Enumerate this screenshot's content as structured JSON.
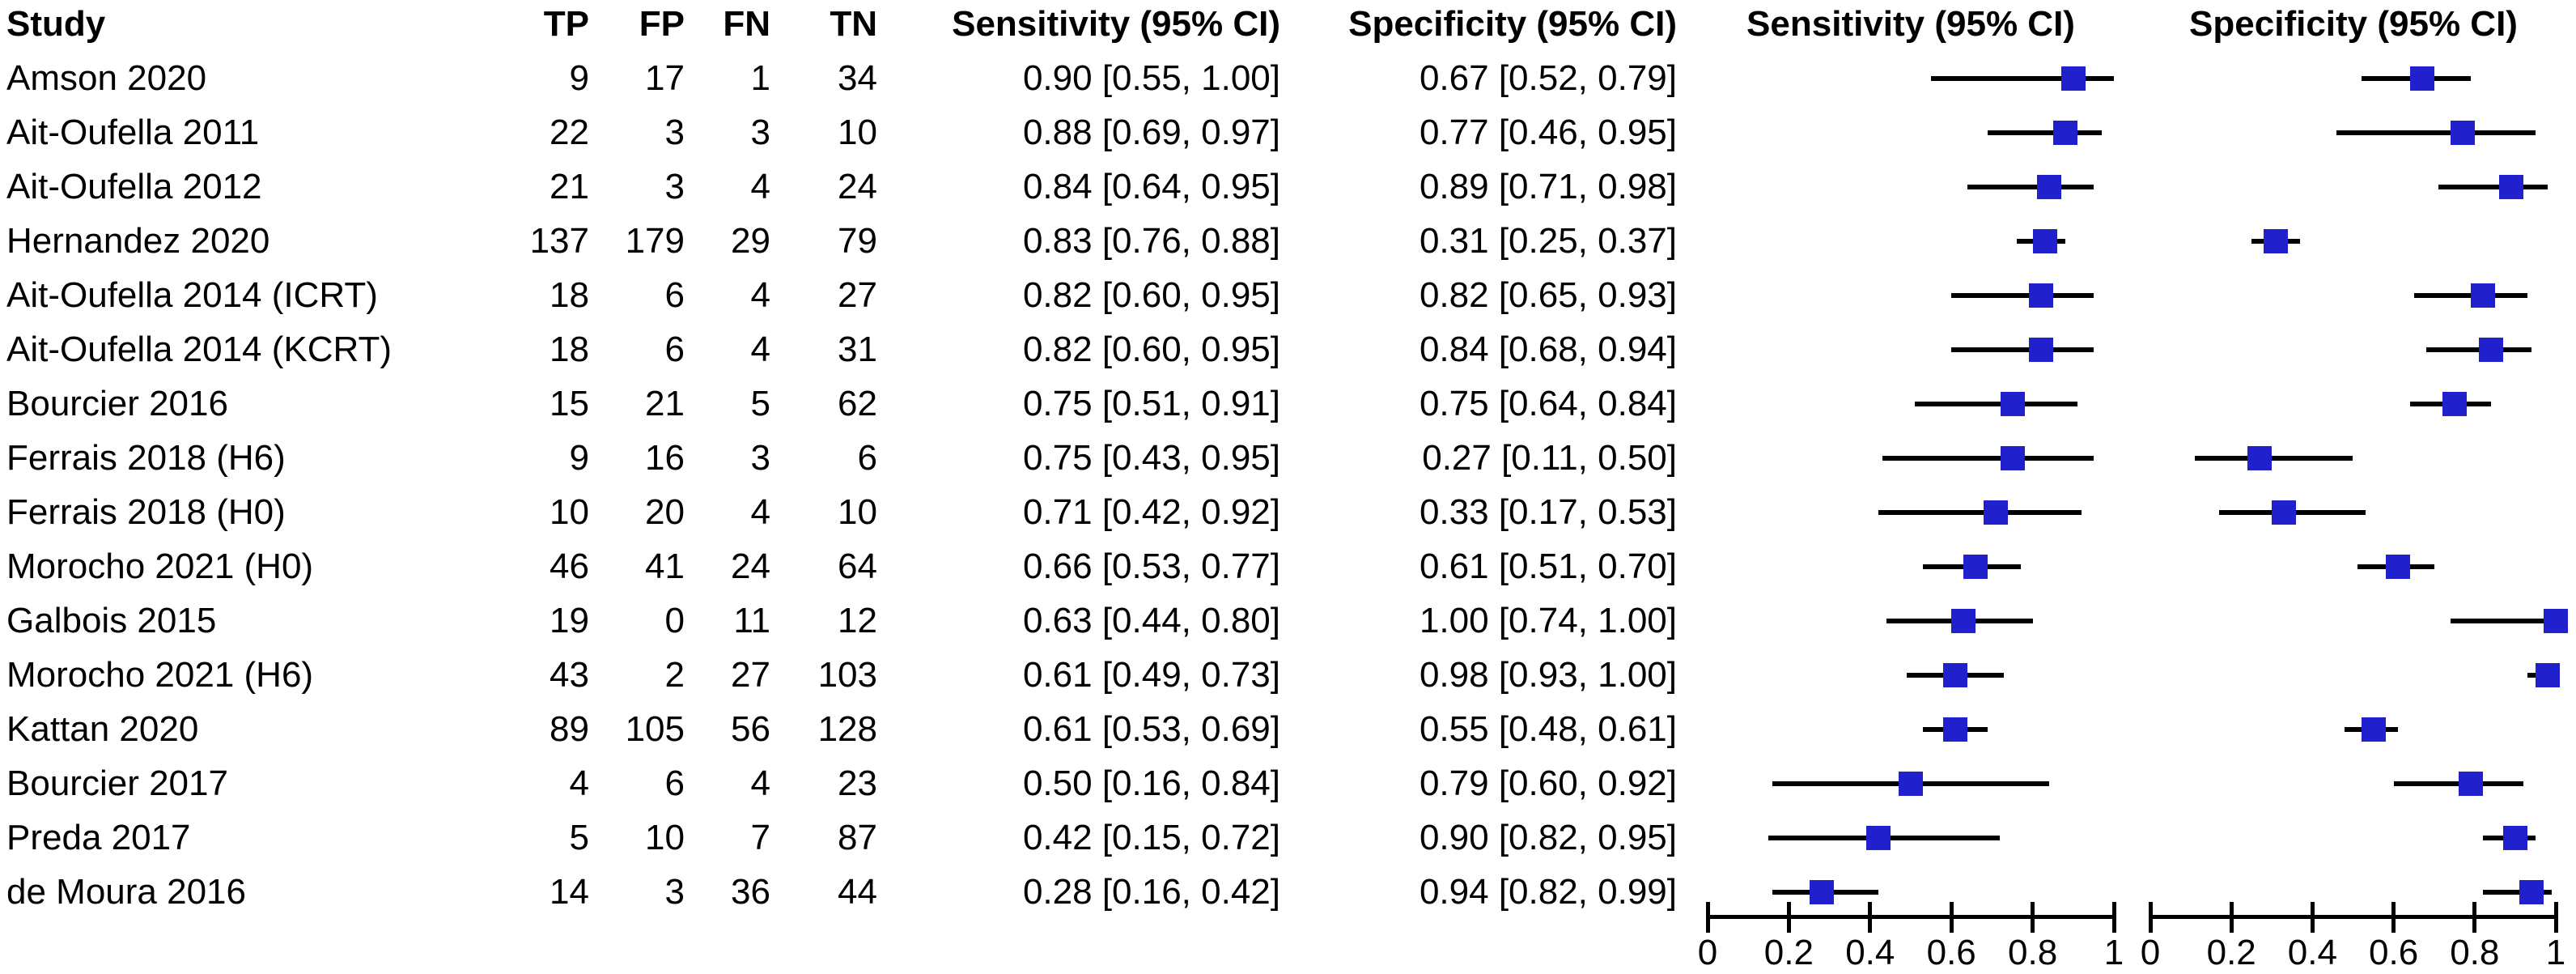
{
  "figure": {
    "kind": "diagnostic-accuracy-forest-plot",
    "background": "#FFFFFF"
  },
  "colors": {
    "marker_square": "#2020CC",
    "ci_line": "#000000",
    "axis": "#000000",
    "text": "#000000"
  },
  "columns": {
    "study": "Study",
    "tp": "TP",
    "fp": "FP",
    "fn": "FN",
    "tn": "TN",
    "sens_ci": "Sensitivity (95% CI)",
    "spec_ci": "Specificity (95% CI)",
    "sens_plot": "Sensitivity (95% CI)",
    "spec_plot": "Specificity (95% CI)"
  },
  "axis": {
    "tick_labels": [
      "0",
      "0.2",
      "0.4",
      "0.6",
      "0.8",
      "1"
    ],
    "tick_values": [
      0,
      0.2,
      0.4,
      0.6,
      0.8,
      1
    ],
    "min": 0,
    "max": 1
  },
  "rows": [
    {
      "study": "Amson 2020",
      "tp": "9",
      "fp": "17",
      "fn": "1",
      "tn": "34",
      "sens_text": "0.90 [0.55, 1.00]",
      "spec_text": "0.67 [0.52, 0.79]",
      "sens": 0.9,
      "sens_lo": 0.55,
      "sens_hi": 1.0,
      "spec": 0.67,
      "spec_lo": 0.52,
      "spec_hi": 0.79
    },
    {
      "study": "Ait-Oufella 2011",
      "tp": "22",
      "fp": "3",
      "fn": "3",
      "tn": "10",
      "sens_text": "0.88 [0.69, 0.97]",
      "spec_text": "0.77 [0.46, 0.95]",
      "sens": 0.88,
      "sens_lo": 0.69,
      "sens_hi": 0.97,
      "spec": 0.77,
      "spec_lo": 0.46,
      "spec_hi": 0.95
    },
    {
      "study": "Ait-Oufella 2012",
      "tp": "21",
      "fp": "3",
      "fn": "4",
      "tn": "24",
      "sens_text": "0.84 [0.64, 0.95]",
      "spec_text": "0.89 [0.71, 0.98]",
      "sens": 0.84,
      "sens_lo": 0.64,
      "sens_hi": 0.95,
      "spec": 0.89,
      "spec_lo": 0.71,
      "spec_hi": 0.98
    },
    {
      "study": "Hernandez 2020",
      "tp": "137",
      "fp": "179",
      "fn": "29",
      "tn": "79",
      "sens_text": "0.83 [0.76, 0.88]",
      "spec_text": "0.31 [0.25, 0.37]",
      "sens": 0.83,
      "sens_lo": 0.76,
      "sens_hi": 0.88,
      "spec": 0.31,
      "spec_lo": 0.25,
      "spec_hi": 0.37
    },
    {
      "study": "Ait-Oufella 2014 (ICRT)",
      "tp": "18",
      "fp": "6",
      "fn": "4",
      "tn": "27",
      "sens_text": "0.82 [0.60, 0.95]",
      "spec_text": "0.82 [0.65, 0.93]",
      "sens": 0.82,
      "sens_lo": 0.6,
      "sens_hi": 0.95,
      "spec": 0.82,
      "spec_lo": 0.65,
      "spec_hi": 0.93
    },
    {
      "study": "Ait-Oufella 2014 (KCRT)",
      "tp": "18",
      "fp": "6",
      "fn": "4",
      "tn": "31",
      "sens_text": "0.82 [0.60, 0.95]",
      "spec_text": "0.84 [0.68, 0.94]",
      "sens": 0.82,
      "sens_lo": 0.6,
      "sens_hi": 0.95,
      "spec": 0.84,
      "spec_lo": 0.68,
      "spec_hi": 0.94
    },
    {
      "study": "Bourcier 2016",
      "tp": "15",
      "fp": "21",
      "fn": "5",
      "tn": "62",
      "sens_text": "0.75 [0.51, 0.91]",
      "spec_text": "0.75 [0.64, 0.84]",
      "sens": 0.75,
      "sens_lo": 0.51,
      "sens_hi": 0.91,
      "spec": 0.75,
      "spec_lo": 0.64,
      "spec_hi": 0.84
    },
    {
      "study": "Ferrais 2018 (H6)",
      "tp": "9",
      "fp": "16",
      "fn": "3",
      "tn": "6",
      "sens_text": "0.75 [0.43, 0.95]",
      "spec_text": "0.27 [0.11, 0.50]",
      "sens": 0.75,
      "sens_lo": 0.43,
      "sens_hi": 0.95,
      "spec": 0.27,
      "spec_lo": 0.11,
      "spec_hi": 0.5
    },
    {
      "study": "Ferrais 2018 (H0)",
      "tp": "10",
      "fp": "20",
      "fn": "4",
      "tn": "10",
      "sens_text": "0.71 [0.42, 0.92]",
      "spec_text": "0.33 [0.17, 0.53]",
      "sens": 0.71,
      "sens_lo": 0.42,
      "sens_hi": 0.92,
      "spec": 0.33,
      "spec_lo": 0.17,
      "spec_hi": 0.53
    },
    {
      "study": "Morocho 2021 (H0)",
      "tp": "46",
      "fp": "41",
      "fn": "24",
      "tn": "64",
      "sens_text": "0.66 [0.53, 0.77]",
      "spec_text": "0.61 [0.51, 0.70]",
      "sens": 0.66,
      "sens_lo": 0.53,
      "sens_hi": 0.77,
      "spec": 0.61,
      "spec_lo": 0.51,
      "spec_hi": 0.7
    },
    {
      "study": "Galbois 2015",
      "tp": "19",
      "fp": "0",
      "fn": "11",
      "tn": "12",
      "sens_text": "0.63 [0.44, 0.80]",
      "spec_text": "1.00 [0.74, 1.00]",
      "sens": 0.63,
      "sens_lo": 0.44,
      "sens_hi": 0.8,
      "spec": 1.0,
      "spec_lo": 0.74,
      "spec_hi": 1.0
    },
    {
      "study": "Morocho 2021 (H6)",
      "tp": "43",
      "fp": "2",
      "fn": "27",
      "tn": "103",
      "sens_text": "0.61 [0.49, 0.73]",
      "spec_text": "0.98 [0.93, 1.00]",
      "sens": 0.61,
      "sens_lo": 0.49,
      "sens_hi": 0.73,
      "spec": 0.98,
      "spec_lo": 0.93,
      "spec_hi": 1.0
    },
    {
      "study": "Kattan 2020",
      "tp": "89",
      "fp": "105",
      "fn": "56",
      "tn": "128",
      "sens_text": "0.61 [0.53, 0.69]",
      "spec_text": "0.55 [0.48, 0.61]",
      "sens": 0.61,
      "sens_lo": 0.53,
      "sens_hi": 0.69,
      "spec": 0.55,
      "spec_lo": 0.48,
      "spec_hi": 0.61
    },
    {
      "study": "Bourcier 2017",
      "tp": "4",
      "fp": "6",
      "fn": "4",
      "tn": "23",
      "sens_text": "0.50 [0.16, 0.84]",
      "spec_text": "0.79 [0.60, 0.92]",
      "sens": 0.5,
      "sens_lo": 0.16,
      "sens_hi": 0.84,
      "spec": 0.79,
      "spec_lo": 0.6,
      "spec_hi": 0.92
    },
    {
      "study": "Preda 2017",
      "tp": "5",
      "fp": "10",
      "fn": "7",
      "tn": "87",
      "sens_text": "0.42 [0.15, 0.72]",
      "spec_text": "0.90 [0.82, 0.95]",
      "sens": 0.42,
      "sens_lo": 0.15,
      "sens_hi": 0.72,
      "spec": 0.9,
      "spec_lo": 0.82,
      "spec_hi": 0.95
    },
    {
      "study": "de Moura 2016",
      "tp": "14",
      "fp": "3",
      "fn": "36",
      "tn": "44",
      "sens_text": "0.28 [0.16, 0.42]",
      "spec_text": "0.94 [0.82, 0.99]",
      "sens": 0.28,
      "sens_lo": 0.16,
      "sens_hi": 0.42,
      "spec": 0.94,
      "spec_lo": 0.82,
      "spec_hi": 0.99
    }
  ],
  "chart_data": {
    "type": "scatter",
    "subtype": "forest-plot",
    "title": "",
    "categories": [
      "Amson 2020",
      "Ait-Oufella 2011",
      "Ait-Oufella 2012",
      "Hernandez 2020",
      "Ait-Oufella 2014 (ICRT)",
      "Ait-Oufella 2014 (KCRT)",
      "Bourcier 2016",
      "Ferrais 2018 (H6)",
      "Ferrais 2018 (H0)",
      "Morocho 2021 (H0)",
      "Galbois 2015",
      "Morocho 2021 (H6)",
      "Kattan 2020",
      "Bourcier 2017",
      "Preda 2017",
      "de Moura 2016"
    ],
    "counts": {
      "TP": [
        9,
        22,
        21,
        137,
        18,
        18,
        15,
        9,
        10,
        46,
        19,
        43,
        89,
        4,
        5,
        14
      ],
      "FP": [
        17,
        3,
        3,
        179,
        6,
        6,
        21,
        16,
        20,
        41,
        0,
        2,
        105,
        6,
        10,
        3
      ],
      "FN": [
        1,
        3,
        4,
        29,
        4,
        4,
        5,
        3,
        4,
        24,
        11,
        27,
        56,
        4,
        7,
        36
      ],
      "TN": [
        34,
        10,
        24,
        79,
        27,
        31,
        62,
        6,
        10,
        64,
        12,
        103,
        128,
        23,
        87,
        44
      ]
    },
    "series": [
      {
        "name": "Sensitivity (95% CI)",
        "values": [
          0.9,
          0.88,
          0.84,
          0.83,
          0.82,
          0.82,
          0.75,
          0.75,
          0.71,
          0.66,
          0.63,
          0.61,
          0.61,
          0.5,
          0.42,
          0.28
        ],
        "ci_low": [
          0.55,
          0.69,
          0.64,
          0.76,
          0.6,
          0.6,
          0.51,
          0.43,
          0.42,
          0.53,
          0.44,
          0.49,
          0.53,
          0.16,
          0.15,
          0.16
        ],
        "ci_high": [
          1.0,
          0.97,
          0.95,
          0.88,
          0.95,
          0.95,
          0.91,
          0.95,
          0.92,
          0.77,
          0.8,
          0.73,
          0.69,
          0.84,
          0.72,
          0.42
        ]
      },
      {
        "name": "Specificity (95% CI)",
        "values": [
          0.67,
          0.77,
          0.89,
          0.31,
          0.82,
          0.84,
          0.75,
          0.27,
          0.33,
          0.61,
          1.0,
          0.98,
          0.55,
          0.79,
          0.9,
          0.94
        ],
        "ci_low": [
          0.52,
          0.46,
          0.71,
          0.25,
          0.65,
          0.68,
          0.64,
          0.11,
          0.17,
          0.51,
          0.74,
          0.93,
          0.48,
          0.6,
          0.82,
          0.82
        ],
        "ci_high": [
          0.79,
          0.95,
          0.98,
          0.37,
          0.93,
          0.94,
          0.84,
          0.5,
          0.53,
          0.7,
          1.0,
          1.0,
          0.61,
          0.92,
          0.95,
          0.99
        ]
      }
    ],
    "xlabel": "",
    "ylabel": "",
    "xlim": [
      0,
      1
    ],
    "xticks": [
      0,
      0.2,
      0.4,
      0.6,
      0.8,
      1
    ],
    "grid": false,
    "legend_position": "none",
    "marker": "blue-square-with-black-ci-line",
    "panels": [
      "Sensitivity (95% CI)",
      "Specificity (95% CI)"
    ]
  }
}
